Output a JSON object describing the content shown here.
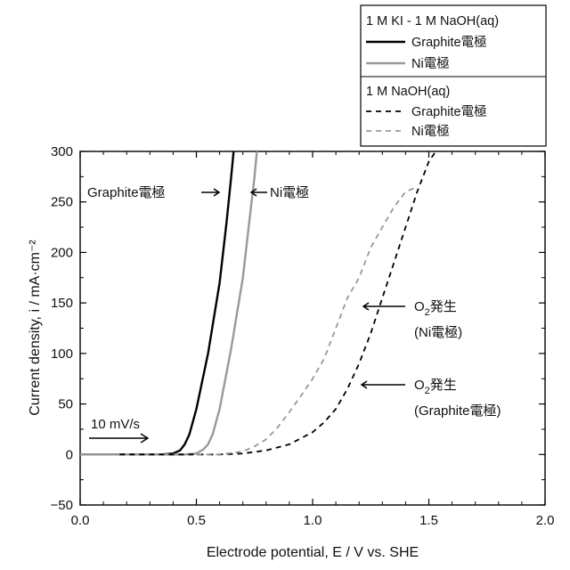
{
  "chart_data": {
    "type": "line",
    "title": "",
    "xlabel": "Electrode potential, E / V vs. SHE",
    "ylabel": "Current density, i / mA·cm⁻²",
    "xlim": [
      0.0,
      2.0
    ],
    "ylim": [
      -50,
      300
    ],
    "x_ticks": [
      "0.0",
      "0.5",
      "1.0",
      "1.5",
      "2.0"
    ],
    "y_ticks": [
      "−50",
      "0",
      "50",
      "100",
      "150",
      "200",
      "250",
      "300"
    ],
    "grid": false,
    "legend_position": "top-right, above plot",
    "legend": {
      "group1_title": "1 M KI - 1 M NaOH(aq)",
      "group2_title": "1 M NaOH(aq)",
      "entries": [
        {
          "label": "Graphite電極",
          "group": 1,
          "color": "#000000",
          "dash": "solid"
        },
        {
          "label": "Ni電極",
          "group": 1,
          "color": "#999999",
          "dash": "solid"
        },
        {
          "label": "Graphite電極",
          "group": 2,
          "color": "#000000",
          "dash": "dashed"
        },
        {
          "label": "Ni電極",
          "group": 2,
          "color": "#999999",
          "dash": "dashed"
        }
      ]
    },
    "series": [
      {
        "name": "Graphite電極",
        "group": "1 M KI - 1 M NaOH(aq)",
        "color": "#000000",
        "dash": "solid",
        "x": [
          0.0,
          0.35,
          0.4,
          0.43,
          0.45,
          0.47,
          0.5,
          0.55,
          0.6,
          0.63,
          0.65,
          0.66
        ],
        "y": [
          0,
          0,
          1,
          4,
          10,
          20,
          45,
          100,
          170,
          230,
          275,
          300
        ]
      },
      {
        "name": "Ni電極",
        "group": "1 M KI - 1 M NaOH(aq)",
        "color": "#999999",
        "dash": "solid",
        "x": [
          0.0,
          0.45,
          0.5,
          0.53,
          0.55,
          0.57,
          0.6,
          0.65,
          0.7,
          0.73,
          0.75,
          0.76
        ],
        "y": [
          0,
          0,
          1,
          5,
          10,
          20,
          45,
          105,
          175,
          235,
          275,
          300
        ]
      },
      {
        "name": "Graphite電極",
        "group": "1 M NaOH(aq)",
        "color": "#000000",
        "dash": "dashed",
        "x": [
          0.17,
          0.3,
          0.5,
          0.6,
          0.7,
          0.8,
          0.9,
          1.0,
          1.05,
          1.1,
          1.15,
          1.2,
          1.25,
          1.3,
          1.35,
          1.4,
          1.45,
          1.5,
          1.53
        ],
        "y": [
          0,
          0,
          0,
          0,
          1,
          4,
          10,
          22,
          32,
          45,
          65,
          90,
          120,
          155,
          190,
          225,
          260,
          290,
          300
        ]
      },
      {
        "name": "Ni電極",
        "group": "1 M NaOH(aq)",
        "color": "#999999",
        "dash": "dashed",
        "x": [
          0.5,
          0.6,
          0.7,
          0.75,
          0.8,
          0.85,
          0.9,
          0.95,
          1.0,
          1.05,
          1.1,
          1.15,
          1.2,
          1.25,
          1.3,
          1.35,
          1.4,
          1.45
        ],
        "y": [
          0,
          0,
          3,
          8,
          15,
          27,
          42,
          58,
          75,
          95,
          125,
          155,
          175,
          205,
          225,
          245,
          260,
          265
        ]
      }
    ],
    "annotations": {
      "graphite_kI": "Graphite電極",
      "ni_kI": "Ni電極",
      "o2_label": "O",
      "o2_sub": "2",
      "o2_suffix": "発生",
      "o2_ni_paren": "(Ni電極)",
      "o2_graphite_paren": "(Graphite電極)",
      "scan_rate": "10 mV/s"
    }
  }
}
